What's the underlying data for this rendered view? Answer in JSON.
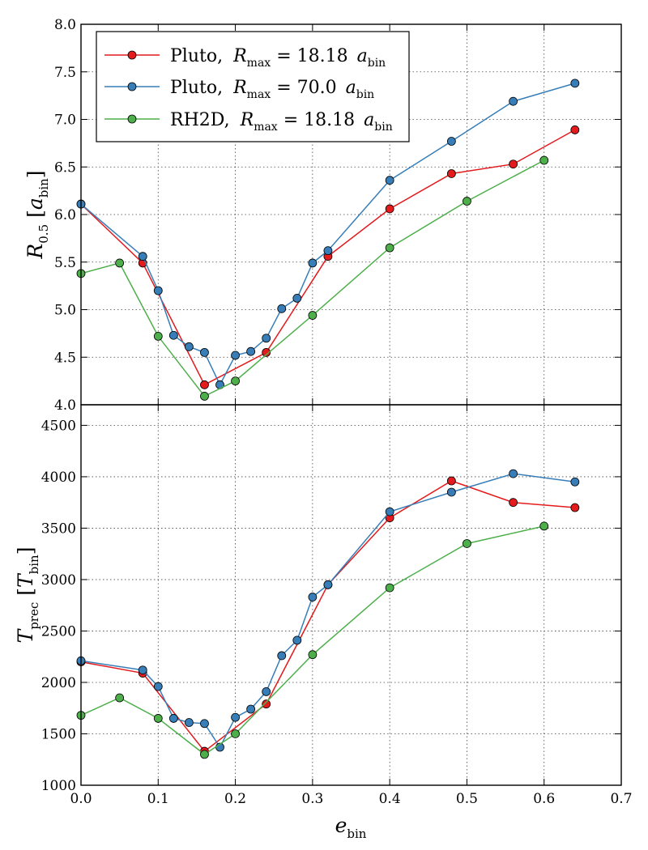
{
  "chart_data": [
    {
      "type": "line",
      "panel": "top",
      "ylabel_main": "R",
      "ylabel_sub": "0.5",
      "ylabel_unit_main": "a",
      "ylabel_unit_sub": "bin",
      "xlim": [
        0.0,
        0.7
      ],
      "ylim": [
        4.0,
        8.0
      ],
      "yticks": [
        "4.0",
        "4.5",
        "5.0",
        "5.5",
        "6.0",
        "6.5",
        "7.0",
        "7.5",
        "8.0"
      ],
      "grid": true,
      "legend": "top-left",
      "series": [
        {
          "name": "Pluto, R_max = 18.18 a_bin",
          "legend_code": "Pluto,",
          "legend_value": "18.18",
          "color": "#e41a1c",
          "x": [
            0.0,
            0.08,
            0.16,
            0.24,
            0.32,
            0.4,
            0.48,
            0.56,
            0.64
          ],
          "y": [
            6.11,
            5.49,
            4.21,
            4.55,
            5.56,
            6.06,
            6.43,
            6.53,
            6.89
          ]
        },
        {
          "name": "Pluto, R_max = 70.0 a_bin",
          "legend_code": "Pluto,",
          "legend_value": "70.0",
          "color": "#377eb8",
          "x": [
            0.0,
            0.08,
            0.1,
            0.12,
            0.14,
            0.16,
            0.18,
            0.2,
            0.22,
            0.24,
            0.26,
            0.28,
            0.3,
            0.32,
            0.4,
            0.48,
            0.56,
            0.64
          ],
          "y": [
            6.11,
            5.56,
            5.2,
            4.73,
            4.61,
            4.55,
            4.21,
            4.52,
            4.56,
            4.7,
            5.01,
            5.12,
            5.49,
            5.62,
            6.36,
            6.77,
            7.19,
            7.38
          ]
        },
        {
          "name": "RH2D, R_max = 18.18 a_bin",
          "legend_code": "RH2D,",
          "legend_value": "18.18",
          "color": "#4daf4a",
          "x": [
            0.0,
            0.05,
            0.1,
            0.16,
            0.2,
            0.3,
            0.4,
            0.5,
            0.6
          ],
          "y": [
            5.38,
            5.49,
            4.72,
            4.09,
            4.25,
            4.94,
            5.65,
            6.14,
            6.57
          ]
        }
      ]
    },
    {
      "type": "line",
      "panel": "bottom",
      "xlabel_main": "e",
      "xlabel_sub": "bin",
      "ylabel_main": "T",
      "ylabel_sub": "prec",
      "ylabel_unit_main": "T",
      "ylabel_unit_sub": "bin",
      "xlim": [
        0.0,
        0.7
      ],
      "ylim": [
        1000,
        4700
      ],
      "xticks": [
        "0.0",
        "0.1",
        "0.2",
        "0.3",
        "0.4",
        "0.5",
        "0.6",
        "0.7"
      ],
      "yticks": [
        "1000",
        "1500",
        "2000",
        "2500",
        "3000",
        "3500",
        "4000",
        "4500"
      ],
      "grid": true,
      "series": [
        {
          "name": "Pluto, R_max = 18.18 a_bin",
          "color": "#e41a1c",
          "x": [
            0.0,
            0.08,
            0.16,
            0.24,
            0.32,
            0.4,
            0.48,
            0.56,
            0.64
          ],
          "y": [
            2200,
            2090,
            1330,
            1790,
            2950,
            3600,
            3960,
            3750,
            3700
          ]
        },
        {
          "name": "Pluto, R_max = 70.0 a_bin",
          "color": "#377eb8",
          "x": [
            0.0,
            0.08,
            0.1,
            0.12,
            0.14,
            0.16,
            0.18,
            0.2,
            0.22,
            0.24,
            0.26,
            0.28,
            0.3,
            0.32,
            0.4,
            0.48,
            0.56,
            0.64
          ],
          "y": [
            2210,
            2120,
            1960,
            1650,
            1610,
            1600,
            1370,
            1660,
            1740,
            1910,
            2260,
            2410,
            2830,
            2950,
            3660,
            3850,
            4030,
            3950
          ]
        },
        {
          "name": "RH2D, R_max = 18.18 a_bin",
          "color": "#4daf4a",
          "x": [
            0.0,
            0.05,
            0.1,
            0.16,
            0.2,
            0.3,
            0.4,
            0.5,
            0.6
          ],
          "y": [
            1680,
            1850,
            1650,
            1300,
            1500,
            2270,
            2920,
            3350,
            3520
          ]
        }
      ]
    }
  ]
}
